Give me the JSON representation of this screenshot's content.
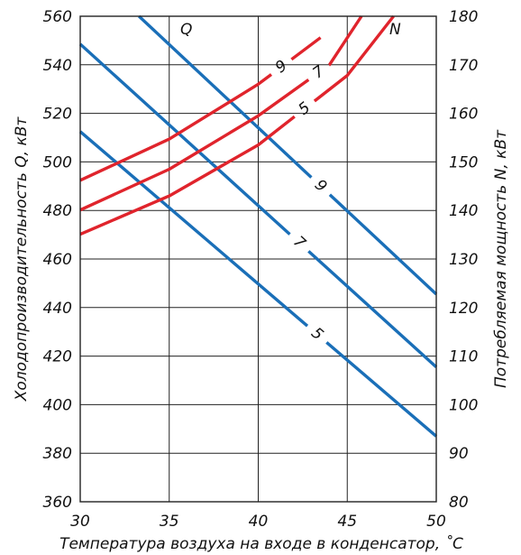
{
  "chart_data": {
    "type": "line",
    "xlabel": "Температура воздуха на входе в конденсатор, ˚С",
    "ylabel_left": "Холодопроизводительность Q, кВт",
    "ylabel_right": "Потребляемая мощность N, кВт",
    "xlim": [
      30,
      50
    ],
    "ylim_left": [
      360,
      560
    ],
    "ylim_right": [
      80,
      180
    ],
    "x_ticks": [
      30,
      35,
      40,
      45,
      50
    ],
    "y_left_ticks": [
      360,
      380,
      400,
      420,
      440,
      460,
      480,
      500,
      520,
      540,
      560
    ],
    "y_right_ticks": [
      80,
      90,
      100,
      110,
      120,
      130,
      140,
      150,
      160,
      170,
      180
    ],
    "grid": true,
    "group_labels": [
      {
        "text": "Q",
        "color": "#111111"
      },
      {
        "text": "N",
        "color": "#111111"
      }
    ],
    "series": [
      {
        "name": "9",
        "group": "Q",
        "axis": "left",
        "color": "#1a6fb8",
        "x": [
          33.3,
          50
        ],
        "y": [
          560,
          445.5
        ],
        "label_at": 43.5
      },
      {
        "name": "7",
        "group": "Q",
        "axis": "left",
        "color": "#1a6fb8",
        "x": [
          30,
          50
        ],
        "y": [
          548.5,
          415.5
        ],
        "label_at": 42.3
      },
      {
        "name": "5",
        "group": "Q",
        "axis": "left",
        "color": "#1a6fb8",
        "x": [
          30,
          50
        ],
        "y": [
          512.5,
          387
        ],
        "label_at": 43.3
      },
      {
        "name": "9",
        "group": "N",
        "axis": "right",
        "color": "#e0242c",
        "x": [
          30,
          35,
          40,
          43.5
        ],
        "y": [
          146.2,
          154.7,
          166.0,
          175.6
        ],
        "label_at": 41.3
      },
      {
        "name": "7",
        "group": "N",
        "axis": "right",
        "color": "#e0242c",
        "x": [
          30,
          35,
          40,
          44,
          45.8
        ],
        "y": [
          140.1,
          148.5,
          159.5,
          170.0,
          180.0
        ],
        "label_at": 43.4
      },
      {
        "name": "5",
        "group": "N",
        "axis": "right",
        "color": "#e0242c",
        "x": [
          30,
          35,
          40,
          45,
          47.6
        ],
        "y": [
          135.1,
          143.0,
          153.5,
          167.8,
          180.0
        ],
        "label_at": 42.6
      }
    ]
  }
}
